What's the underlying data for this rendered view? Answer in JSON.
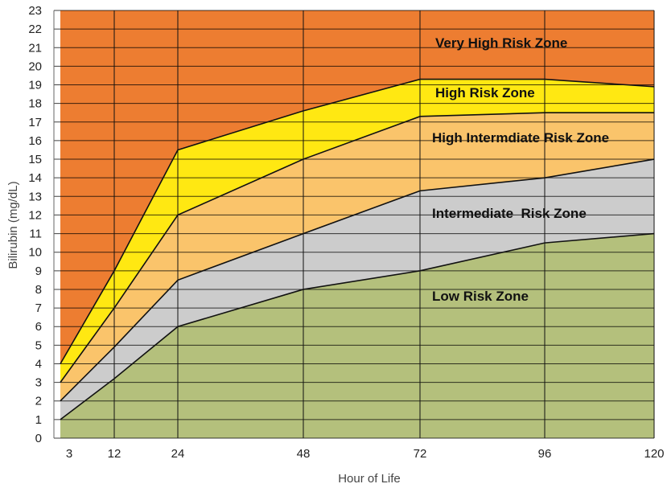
{
  "chart_data": {
    "type": "area",
    "xlabel": "Hour of Life",
    "ylabel": "Bilirubin (mg/dL)",
    "x_ticks": [
      3,
      12,
      24,
      48,
      72,
      96,
      120
    ],
    "y_ticks": [
      0,
      1,
      2,
      3,
      4,
      5,
      6,
      7,
      8,
      9,
      10,
      11,
      12,
      13,
      14,
      15,
      16,
      17,
      18,
      19,
      20,
      21,
      22,
      23
    ],
    "xlim": [
      3,
      120
    ],
    "ylim": [
      0,
      23
    ],
    "grid": "horizontal gridlines and vertical lines at x ticks",
    "boundaries": [
      {
        "x": [
          3,
          12,
          24,
          48,
          72,
          96,
          120
        ],
        "y": [
          1,
          3.2,
          6,
          8,
          9,
          10.5,
          11
        ]
      },
      {
        "x": [
          3,
          12,
          24,
          48,
          72,
          96,
          120
        ],
        "y": [
          2,
          4.9,
          8.5,
          11,
          13.3,
          14,
          15
        ]
      },
      {
        "x": [
          3,
          12,
          24,
          48,
          72,
          96,
          120
        ],
        "y": [
          3,
          7,
          12,
          15,
          17.3,
          17.5,
          17.5
        ]
      },
      {
        "x": [
          3,
          12,
          24,
          48,
          72,
          96,
          120
        ],
        "y": [
          4,
          9,
          15.5,
          17.6,
          19.3,
          19.3,
          18.9
        ]
      }
    ],
    "zones": [
      {
        "label": "Low Risk Zone",
        "color": "#b4c07c"
      },
      {
        "label": "Intermediate  Risk Zone",
        "color": "#cccccc"
      },
      {
        "label": "High Intermdiate Risk Zone",
        "color": "#fac46b"
      },
      {
        "label": "High Risk Zone",
        "color": "#ffe812"
      },
      {
        "label": "Very High Risk Zone",
        "color": "#ed7d31"
      }
    ]
  }
}
